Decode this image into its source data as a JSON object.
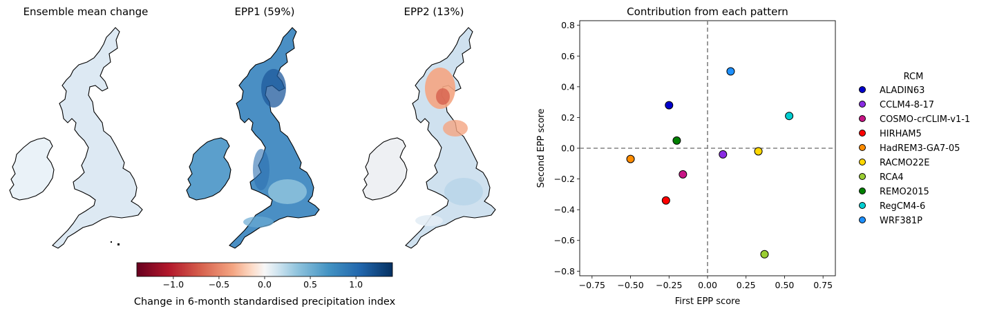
{
  "maps": [
    {
      "title": "Ensemble mean change",
      "pattern": "mean"
    },
    {
      "title": "EPP1 (59%)",
      "pattern": "epp1"
    },
    {
      "title": "EPP2 (13%)",
      "pattern": "epp2"
    }
  ],
  "colorbar": {
    "label": "Change in 6-month standardised precipitation index",
    "colormap": "RdBu",
    "range": [
      -1.4,
      1.4
    ],
    "ticks": [
      -1.0,
      -0.5,
      0.0,
      0.5,
      1.0
    ],
    "tick_labels": [
      "−1.0",
      "−0.5",
      "0.0",
      "0.5",
      "1.0"
    ]
  },
  "chart_data": {
    "type": "scatter",
    "title": "Contribution from each pattern",
    "xlabel": "First EPP score",
    "ylabel": "Second EPP score",
    "xlim": [
      -0.83,
      0.83
    ],
    "ylim": [
      -0.83,
      0.83
    ],
    "xticks": [
      -0.75,
      -0.5,
      -0.25,
      0.0,
      0.25,
      0.5,
      0.75
    ],
    "xtick_labels": [
      "−0.75",
      "−0.50",
      "−0.25",
      "0.00",
      "0.25",
      "0.50",
      "0.75"
    ],
    "yticks": [
      -0.8,
      -0.6,
      -0.4,
      -0.2,
      0.0,
      0.2,
      0.4,
      0.6,
      0.8
    ],
    "ytick_labels": [
      "−0.8",
      "−0.6",
      "−0.4",
      "−0.2",
      "0.0",
      "0.2",
      "0.4",
      "0.6",
      "0.8"
    ],
    "reference_lines": {
      "x": 0.0,
      "y": 0.0,
      "style": "dashed",
      "color": "#808080"
    },
    "legend": {
      "title": "RCM",
      "placement": "outside-right"
    },
    "series": [
      {
        "name": "ALADIN63",
        "color": "#0000cc",
        "x": -0.25,
        "y": 0.28
      },
      {
        "name": "CCLM4-8-17",
        "color": "#8a2be2",
        "x": 0.1,
        "y": -0.04
      },
      {
        "name": "COSMO-crCLIM-v1-1",
        "color": "#c71585",
        "x": -0.16,
        "y": -0.17
      },
      {
        "name": "HIRHAM5",
        "color": "#ff0000",
        "x": -0.27,
        "y": -0.34
      },
      {
        "name": "HadREM3-GA7-05",
        "color": "#ff8c00",
        "x": -0.5,
        "y": -0.07
      },
      {
        "name": "RACMO22E",
        "color": "#ffd700",
        "x": 0.33,
        "y": -0.02
      },
      {
        "name": "RCA4",
        "color": "#9acd32",
        "x": 0.37,
        "y": -0.69
      },
      {
        "name": "REMO2015",
        "color": "#008000",
        "x": -0.2,
        "y": 0.05
      },
      {
        "name": "RegCM4-6",
        "color": "#00ced1",
        "x": 0.53,
        "y": 0.21
      },
      {
        "name": "WRF381P",
        "color": "#1e90ff",
        "x": 0.15,
        "y": 0.5
      }
    ]
  }
}
